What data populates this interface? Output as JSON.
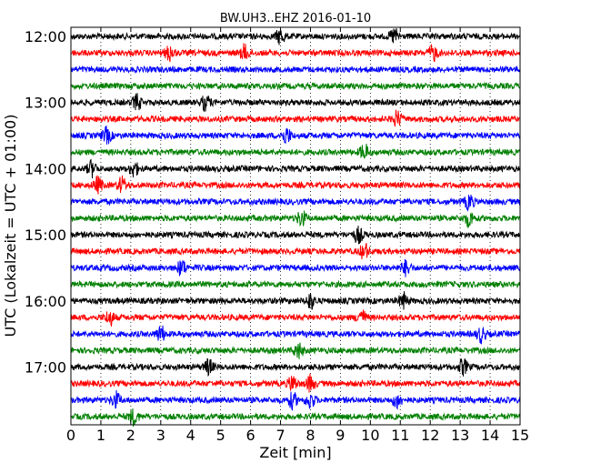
{
  "chart_data": {
    "type": "line",
    "title": "BW.UH3..EHZ 2016-01-10",
    "xlabel": "Zeit  [min]",
    "ylabel": "UTC (Lokalzeit = UTC + 01:00)",
    "xlim": [
      0,
      15
    ],
    "x_ticks": [
      "0",
      "1",
      "2",
      "3",
      "4",
      "5",
      "6",
      "7",
      "8",
      "9",
      "10",
      "11",
      "12",
      "13",
      "14",
      "15"
    ],
    "y_ticks": [
      "12:00",
      "13:00",
      "14:00",
      "15:00",
      "16:00",
      "17:00"
    ],
    "trace_interval_min": 15,
    "grid": true,
    "trace_colors": [
      "#000000",
      "#ff0000",
      "#0000ff",
      "#008000"
    ],
    "traces": [
      {
        "start": "12:00",
        "color": "#000000",
        "events_min": [
          7.0,
          10.8
        ]
      },
      {
        "start": "12:15",
        "color": "#ff0000",
        "events_min": [
          3.3,
          5.8,
          12.1
        ]
      },
      {
        "start": "12:30",
        "color": "#0000ff",
        "events_min": []
      },
      {
        "start": "12:45",
        "color": "#008000",
        "events_min": []
      },
      {
        "start": "13:00",
        "color": "#000000",
        "events_min": [
          2.2,
          4.5
        ]
      },
      {
        "start": "13:15",
        "color": "#ff0000",
        "events_min": [
          10.9
        ]
      },
      {
        "start": "13:30",
        "color": "#0000ff",
        "events_min": [
          1.2,
          7.2
        ]
      },
      {
        "start": "13:45",
        "color": "#008000",
        "events_min": [
          9.8
        ]
      },
      {
        "start": "14:00",
        "color": "#000000",
        "events_min": [
          0.7,
          2.1
        ]
      },
      {
        "start": "14:15",
        "color": "#ff0000",
        "events_min": [
          0.9,
          1.7
        ]
      },
      {
        "start": "14:30",
        "color": "#0000ff",
        "events_min": [
          13.3
        ]
      },
      {
        "start": "14:45",
        "color": "#008000",
        "events_min": [
          7.7,
          13.3
        ]
      },
      {
        "start": "15:00",
        "color": "#000000",
        "events_min": [
          9.6
        ]
      },
      {
        "start": "15:15",
        "color": "#ff0000",
        "events_min": [
          9.8
        ]
      },
      {
        "start": "15:30",
        "color": "#0000ff",
        "events_min": [
          3.7,
          11.2
        ]
      },
      {
        "start": "15:45",
        "color": "#008000",
        "events_min": []
      },
      {
        "start": "16:00",
        "color": "#000000",
        "events_min": [
          8.0,
          11.1
        ]
      },
      {
        "start": "16:15",
        "color": "#ff0000",
        "events_min": [
          1.3,
          9.7
        ]
      },
      {
        "start": "16:30",
        "color": "#0000ff",
        "events_min": [
          3.0,
          13.7
        ]
      },
      {
        "start": "16:45",
        "color": "#008000",
        "events_min": [
          7.6
        ]
      },
      {
        "start": "17:00",
        "color": "#000000",
        "events_min": [
          4.6,
          13.1
        ]
      },
      {
        "start": "17:15",
        "color": "#ff0000",
        "events_min": [
          7.4,
          8.0
        ]
      },
      {
        "start": "17:30",
        "color": "#0000ff",
        "events_min": [
          1.5,
          7.4,
          8.0,
          10.9
        ]
      },
      {
        "start": "17:45",
        "color": "#008000",
        "events_min": [
          2.1
        ]
      }
    ]
  }
}
